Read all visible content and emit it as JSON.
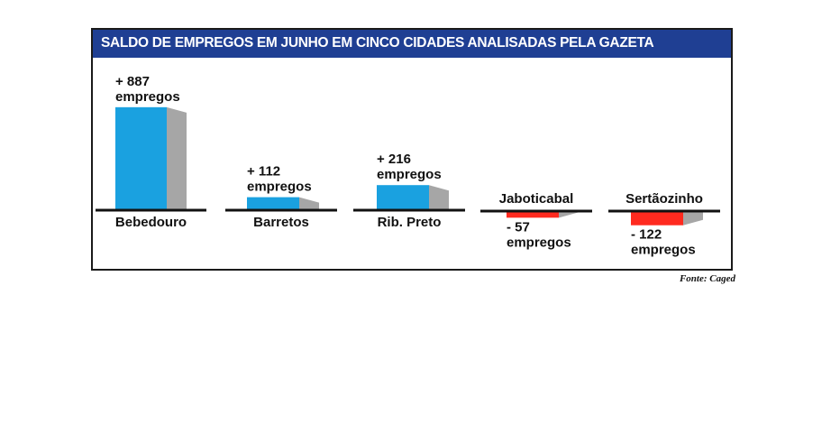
{
  "title": "SALDO DE EMPREGOS EM JUNHO EM CINCO CIDADES ANALISADAS PELA GAZETA",
  "source": "Fonte: Caged",
  "colors": {
    "header_bg": "#1f3f93",
    "positive": "#1aa1e0",
    "negative": "#ff2a1f",
    "side": "#a6a6a6",
    "baseline": "#111111"
  },
  "chart_data": {
    "type": "bar",
    "title": "SALDO DE EMPREGOS EM JUNHO EM CINCO CIDADES ANALISADAS PELA GAZETA",
    "categories": [
      "Bebedouro",
      "Barretos",
      "Rib. Preto",
      "Jaboticabal",
      "Sertãozinho"
    ],
    "values": [
      887,
      112,
      216,
      -57,
      -122
    ],
    "value_labels": [
      "+ 887",
      "+ 112",
      "+ 216",
      "- 57",
      "- 122"
    ],
    "unit_label": "empregos",
    "grid": false,
    "legend": "none"
  }
}
